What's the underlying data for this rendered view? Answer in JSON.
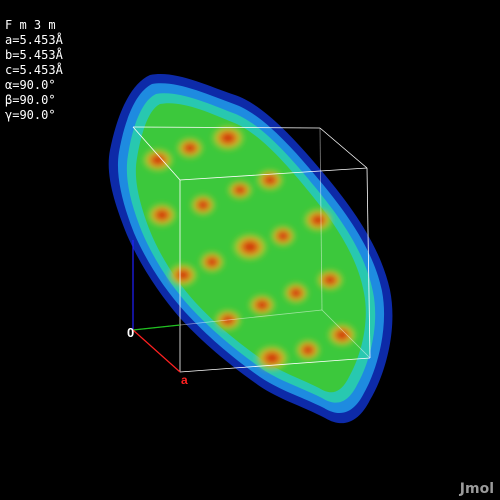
{
  "viewer": {
    "app_name": "Jmol",
    "background": "#000000"
  },
  "cell_info": {
    "space_group": "F m 3 m",
    "lines": [
      "a=5.453Å",
      "b=5.453Å",
      "c=5.453Å",
      "α=90.0°",
      "β=90.0°",
      "γ=90.0°"
    ]
  },
  "axes": {
    "origin_label": "0",
    "a_label": "a",
    "a_color": "#ff2020",
    "b_color": "#20c020",
    "c_color": "#2020ff"
  },
  "surface": {
    "description_colors": [
      "#0d2aa8",
      "#1e8be0",
      "#28d2b8",
      "#3ac840",
      "#a8d42a",
      "#e0b428",
      "#d02a0a"
    ],
    "unit_cell_color": "#ffffff"
  }
}
